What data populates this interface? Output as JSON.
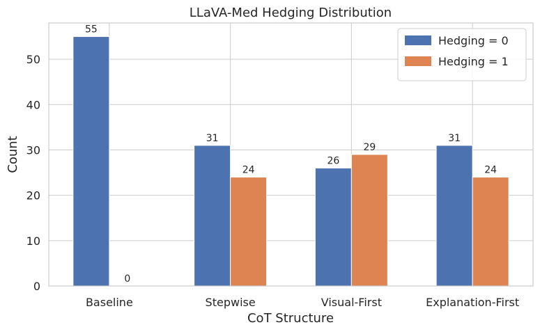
{
  "chart_data": {
    "type": "bar",
    "title": "LLaVA-Med Hedging Distribution",
    "xlabel": "CoT Structure",
    "ylabel": "Count",
    "categories": [
      "Baseline",
      "Stepwise",
      "Visual-First",
      "Explanation-First"
    ],
    "series": [
      {
        "name": "Hedging = 0",
        "values": [
          55,
          31,
          26,
          31
        ],
        "color": "#4c72b0"
      },
      {
        "name": "Hedging = 1",
        "values": [
          0,
          24,
          29,
          24
        ],
        "color": "#dd8452"
      }
    ],
    "ylim": [
      0,
      58
    ],
    "yticks": [
      0,
      10,
      20,
      30,
      40,
      50
    ],
    "grid": true,
    "legend_position": "top-right",
    "data_labels": true
  }
}
